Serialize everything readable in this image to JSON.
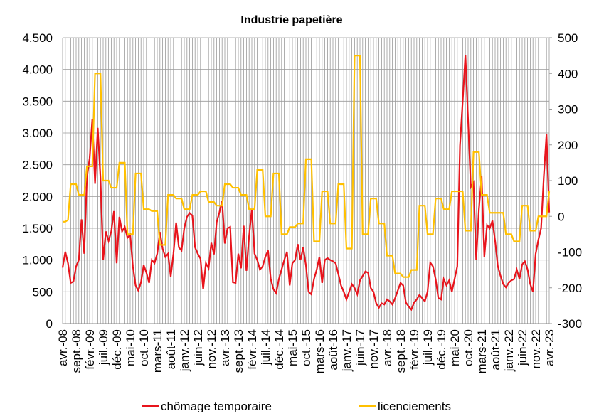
{
  "chart_data": {
    "type": "line",
    "title": "Industrie papetière",
    "categories": [
      "avr.-08",
      null,
      null,
      null,
      null,
      "sept.-08",
      null,
      null,
      null,
      null,
      "févr.-09",
      null,
      null,
      null,
      null,
      "juil.-09",
      null,
      null,
      null,
      null,
      "déc.-09",
      null,
      null,
      null,
      null,
      "mai-10",
      null,
      null,
      null,
      null,
      "oct.-10",
      null,
      null,
      null,
      null,
      "mars-11",
      null,
      null,
      null,
      null,
      "août-11",
      null,
      null,
      null,
      null,
      "janv.-12",
      null,
      null,
      null,
      null,
      "juin-12",
      null,
      null,
      null,
      null,
      "nov.-12",
      null,
      null,
      null,
      null,
      "avr.-13",
      null,
      null,
      null,
      null,
      "sept.-13",
      null,
      null,
      null,
      null,
      "févr.-14",
      null,
      null,
      null,
      null,
      "juil.-14",
      null,
      null,
      null,
      null,
      "déc.-14",
      null,
      null,
      null,
      null,
      "mai-15",
      null,
      null,
      null,
      null,
      "oct.-15",
      null,
      null,
      null,
      null,
      "mars-16",
      null,
      null,
      null,
      null,
      "août-16",
      null,
      null,
      null,
      null,
      "janv.-17",
      null,
      null,
      null,
      null,
      "juin-17",
      null,
      null,
      null,
      null,
      "nov.-17",
      null,
      null,
      null,
      null,
      "avr.-18",
      null,
      null,
      null,
      null,
      "sept.-18",
      null,
      null,
      null,
      null,
      "févr.-19",
      null,
      null,
      null,
      null,
      "juil.-19",
      null,
      null,
      null,
      null,
      "déc.-19",
      null,
      null,
      null,
      null,
      "mai-20",
      null,
      null,
      null,
      null,
      "oct.-20",
      null,
      null,
      null,
      null,
      "mars-21",
      null,
      null,
      null,
      null,
      "août-21",
      null,
      null,
      null,
      null,
      "janv.-22",
      null,
      null,
      null,
      null,
      "juin-22",
      null,
      null,
      null,
      null,
      "nov.-22",
      null,
      null,
      null,
      null,
      "avr.-23"
    ],
    "series": [
      {
        "name": "chômage temporaire",
        "color": "#e8141c",
        "values": [
          880,
          1130,
          950,
          640,
          660,
          900,
          1000,
          1640,
          1100,
          2300,
          2600,
          3220,
          2200,
          3080,
          2300,
          1000,
          1450,
          1300,
          1450,
          1770,
          950,
          1680,
          1450,
          1520,
          1350,
          1400,
          900,
          600,
          520,
          650,
          920,
          800,
          640,
          1000,
          950,
          1100,
          1440,
          1180,
          1050,
          1100,
          740,
          1100,
          1590,
          1200,
          1150,
          1500,
          1680,
          1740,
          1700,
          1200,
          1100,
          1020,
          540,
          950,
          870,
          1270,
          1090,
          1600,
          1750,
          1930,
          1260,
          1500,
          1520,
          650,
          640,
          1100,
          870,
          1540,
          830,
          1380,
          1800,
          1100,
          1000,
          850,
          900,
          1050,
          1150,
          700,
          540,
          480,
          700,
          850,
          1000,
          1130,
          600,
          950,
          1000,
          1250,
          1000,
          1200,
          920,
          500,
          460,
          700,
          850,
          1050,
          640,
          1000,
          1030,
          1000,
          980,
          950,
          780,
          600,
          500,
          380,
          500,
          620,
          560,
          460,
          680,
          750,
          820,
          800,
          560,
          500,
          320,
          250,
          320,
          300,
          380,
          350,
          300,
          400,
          520,
          640,
          600,
          330,
          270,
          220,
          330,
          380,
          450,
          400,
          350,
          500,
          960,
          900,
          700,
          400,
          380,
          700,
          600,
          680,
          500,
          700,
          900,
          2800,
          3500,
          4230,
          3200,
          2150,
          2220,
          1000,
          1800,
          2320,
          1050,
          1550,
          1500,
          1620,
          1300,
          900,
          750,
          620,
          570,
          640,
          680,
          700,
          850,
          700,
          930,
          980,
          850,
          620,
          500,
          1100,
          1320,
          1500,
          2310,
          2980,
          1750
        ]
      },
      {
        "name": "licenciements",
        "color": "#ffc000",
        "axis": "y2",
        "values": [
          -15,
          -15,
          -10,
          90,
          90,
          90,
          60,
          60,
          60,
          140,
          140,
          140,
          400,
          400,
          400,
          100,
          100,
          100,
          80,
          80,
          80,
          150,
          150,
          150,
          -50,
          -50,
          -50,
          120,
          120,
          120,
          20,
          20,
          20,
          15,
          15,
          15,
          -80,
          -80,
          -80,
          60,
          60,
          60,
          50,
          50,
          50,
          20,
          20,
          20,
          60,
          60,
          60,
          70,
          70,
          70,
          40,
          40,
          40,
          30,
          30,
          30,
          90,
          90,
          90,
          80,
          80,
          80,
          60,
          60,
          60,
          20,
          20,
          20,
          130,
          130,
          130,
          0,
          0,
          0,
          120,
          120,
          120,
          -50,
          -50,
          -50,
          -30,
          -30,
          -30,
          -20,
          -20,
          -20,
          160,
          160,
          160,
          -70,
          -70,
          -70,
          70,
          70,
          70,
          -20,
          -20,
          -20,
          90,
          90,
          90,
          -90,
          -90,
          -90,
          450,
          450,
          450,
          -50,
          -50,
          -50,
          50,
          50,
          50,
          -20,
          -20,
          -20,
          -110,
          -110,
          -110,
          -160,
          -160,
          -160,
          -170,
          -170,
          -170,
          -150,
          -150,
          -150,
          30,
          30,
          30,
          -50,
          -50,
          -50,
          50,
          50,
          50,
          20,
          20,
          20,
          70,
          70,
          70,
          70,
          70,
          -40,
          -40,
          -40,
          180,
          180,
          180,
          60,
          60,
          60,
          10,
          10,
          10,
          10,
          10,
          10,
          -50,
          -50,
          -50,
          -70,
          -70,
          -70,
          30,
          30,
          30,
          -40,
          -40,
          -40,
          0,
          0,
          0,
          0,
          70
        ]
      }
    ],
    "ylim": [
      0,
      4500
    ],
    "yticks": [
      0,
      {
        "value": 500,
        "label": "500"
      },
      {
        "value": 1000,
        "label": "1.000"
      },
      {
        "value": 1500,
        "label": "1.500"
      },
      {
        "value": 2000,
        "label": "2.000"
      },
      {
        "value": 2500,
        "label": "2.500"
      },
      {
        "value": 3000,
        "label": "3.000"
      },
      {
        "value": 3500,
        "label": "3.500"
      },
      {
        "value": 4000,
        "label": "4.000"
      },
      {
        "value": 4500,
        "label": "4.500"
      }
    ],
    "y2lim": [
      -300,
      500
    ],
    "y2ticks": [
      -300,
      -200,
      -100,
      0,
      100,
      200,
      300,
      400,
      500
    ],
    "grid": true,
    "legend": "bottom"
  }
}
